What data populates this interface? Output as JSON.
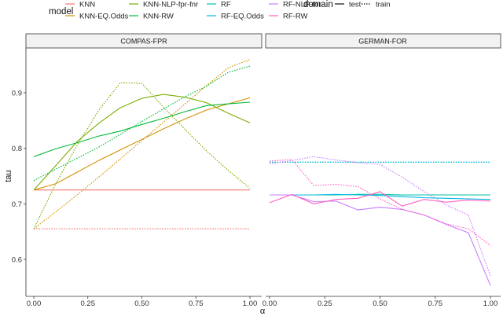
{
  "legend": {
    "model_title": "model",
    "domain_title": "domain",
    "models": [
      {
        "name": "KNN",
        "color": "#F8766D"
      },
      {
        "name": "KNN-EQ.Odds",
        "color": "#D39200"
      },
      {
        "name": "KNN-NLP-fpr-fnr",
        "color": "#7CAE00"
      },
      {
        "name": "KNN-RW",
        "color": "#00BA38"
      },
      {
        "name": "RF",
        "color": "#00C19F"
      },
      {
        "name": "RF-EQ.Odds",
        "color": "#00B9E3"
      },
      {
        "name": "RF-NLP-for",
        "color": "#C77CFF"
      },
      {
        "name": "RF-RW",
        "color": "#FF61C3"
      }
    ],
    "domains": [
      {
        "name": "test",
        "linetype": "solid"
      },
      {
        "name": "train",
        "linetype": "dotted"
      }
    ]
  },
  "chart_data": {
    "type": "line",
    "title": "",
    "xlabel": "α",
    "ylabel": "tau",
    "ylim": [
      0.53,
      0.99
    ],
    "xlim": [
      -0.04,
      1.04
    ],
    "yticks": [
      0.6,
      0.7,
      0.8,
      0.9
    ],
    "xticks": [
      "0.00",
      "0.25",
      "0.50",
      "0.75",
      "1.00"
    ],
    "grid": false,
    "legend_position": "top",
    "x": [
      0.0,
      0.1,
      0.2,
      0.3,
      0.4,
      0.5,
      0.6,
      0.7,
      0.8,
      0.9,
      1.0
    ],
    "panels": [
      {
        "title": "COMPAS-FPR",
        "series": [
          {
            "model": "KNN",
            "domain": "test",
            "values": [
              0.725,
              0.725,
              0.725,
              0.725,
              0.725,
              0.725,
              0.725,
              0.725,
              0.725,
              0.725,
              0.725
            ]
          },
          {
            "model": "KNN",
            "domain": "train",
            "values": [
              0.655,
              0.655,
              0.655,
              0.655,
              0.655,
              0.655,
              0.655,
              0.655,
              0.655,
              0.655,
              0.655
            ]
          },
          {
            "model": "KNN-EQ.Odds",
            "domain": "test",
            "values": [
              0.725,
              0.736,
              0.757,
              0.778,
              0.797,
              0.816,
              0.835,
              0.853,
              0.869,
              0.88,
              0.891
            ]
          },
          {
            "model": "KNN-EQ.Odds",
            "domain": "train",
            "values": [
              0.655,
              0.685,
              0.716,
              0.748,
              0.781,
              0.814,
              0.847,
              0.88,
              0.913,
              0.945,
              0.96
            ]
          },
          {
            "model": "KNN-NLP-fpr-fnr",
            "domain": "test",
            "values": [
              0.725,
              0.768,
              0.812,
              0.845,
              0.873,
              0.89,
              0.897,
              0.892,
              0.882,
              0.863,
              0.846
            ]
          },
          {
            "model": "KNN-NLP-fpr-fnr",
            "domain": "train",
            "values": [
              0.655,
              0.735,
              0.805,
              0.868,
              0.918,
              0.917,
              0.874,
              0.834,
              0.795,
              0.76,
              0.728
            ]
          },
          {
            "model": "KNN-RW",
            "domain": "test",
            "values": [
              0.785,
              0.799,
              0.81,
              0.822,
              0.831,
              0.843,
              0.854,
              0.866,
              0.877,
              0.88,
              0.883
            ]
          },
          {
            "model": "KNN-RW",
            "domain": "train",
            "values": [
              0.742,
              0.762,
              0.782,
              0.802,
              0.825,
              0.848,
              0.871,
              0.893,
              0.912,
              0.937,
              0.948
            ]
          }
        ]
      },
      {
        "title": "GERMAN-FOR",
        "series": [
          {
            "model": "RF",
            "domain": "test",
            "values": [
              0.716,
              0.716,
              0.716,
              0.716,
              0.717,
              0.717,
              0.716,
              0.716,
              0.716,
              0.716,
              0.716
            ]
          },
          {
            "model": "RF",
            "domain": "train",
            "values": [
              0.775,
              0.775,
              0.775,
              0.775,
              0.775,
              0.775,
              0.775,
              0.775,
              0.775,
              0.775,
              0.775
            ]
          },
          {
            "model": "RF-EQ.Odds",
            "domain": "test",
            "values": [
              0.716,
              0.716,
              0.716,
              0.717,
              0.716,
              0.715,
              0.713,
              0.711,
              0.71,
              0.709,
              0.708
            ]
          },
          {
            "model": "RF-EQ.Odds",
            "domain": "train",
            "values": [
              0.775,
              0.775,
              0.775,
              0.775,
              0.775,
              0.775,
              0.775,
              0.775,
              0.775,
              0.775,
              0.775
            ]
          },
          {
            "model": "RF-NLP-for",
            "domain": "test",
            "values": [
              0.716,
              0.716,
              0.704,
              0.705,
              0.689,
              0.694,
              0.69,
              0.68,
              0.663,
              0.648,
              0.553
            ]
          },
          {
            "model": "RF-NLP-for",
            "domain": "train",
            "values": [
              0.772,
              0.778,
              0.785,
              0.779,
              0.774,
              0.771,
              0.748,
              0.722,
              0.698,
              0.68,
              0.57
            ]
          },
          {
            "model": "RF-RW",
            "domain": "test",
            "values": [
              0.702,
              0.717,
              0.7,
              0.708,
              0.71,
              0.722,
              0.696,
              0.708,
              0.703,
              0.707,
              0.705
            ]
          },
          {
            "model": "RF-RW",
            "domain": "train",
            "values": [
              0.777,
              0.78,
              0.733,
              0.735,
              0.731,
              0.709,
              0.69,
              0.68,
              0.664,
              0.655,
              0.625
            ]
          }
        ]
      }
    ]
  }
}
